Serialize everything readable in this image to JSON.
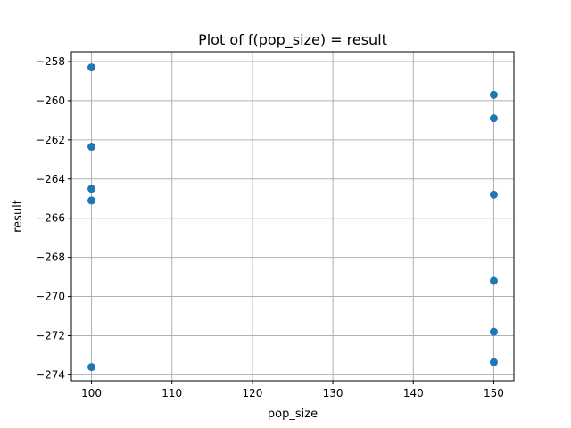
{
  "chart_data": {
    "type": "scatter",
    "title": "Plot of f(pop_size) = result",
    "xlabel": "pop_size",
    "ylabel": "result",
    "xlim": [
      97.5,
      152.5
    ],
    "ylim": [
      -274.3,
      -257.5
    ],
    "xticks": [
      100,
      110,
      120,
      130,
      140,
      150
    ],
    "xtick_labels": [
      "100",
      "110",
      "120",
      "130",
      "140",
      "150"
    ],
    "yticks": [
      -258,
      -260,
      -262,
      -264,
      -266,
      -268,
      -270,
      -272,
      -274
    ],
    "ytick_labels": [
      "−258",
      "−260",
      "−262",
      "−264",
      "−266",
      "−268",
      "−270",
      "−272",
      "−274"
    ],
    "grid": true,
    "marker_color": "#1f77b4",
    "points": [
      {
        "x": 100,
        "y": -258.3
      },
      {
        "x": 100,
        "y": -262.35
      },
      {
        "x": 100,
        "y": -264.5
      },
      {
        "x": 100,
        "y": -265.1
      },
      {
        "x": 100,
        "y": -273.6
      },
      {
        "x": 150,
        "y": -259.7
      },
      {
        "x": 150,
        "y": -260.9
      },
      {
        "x": 150,
        "y": -264.8
      },
      {
        "x": 150,
        "y": -269.2
      },
      {
        "x": 150,
        "y": -271.8
      },
      {
        "x": 150,
        "y": -273.35
      }
    ]
  }
}
